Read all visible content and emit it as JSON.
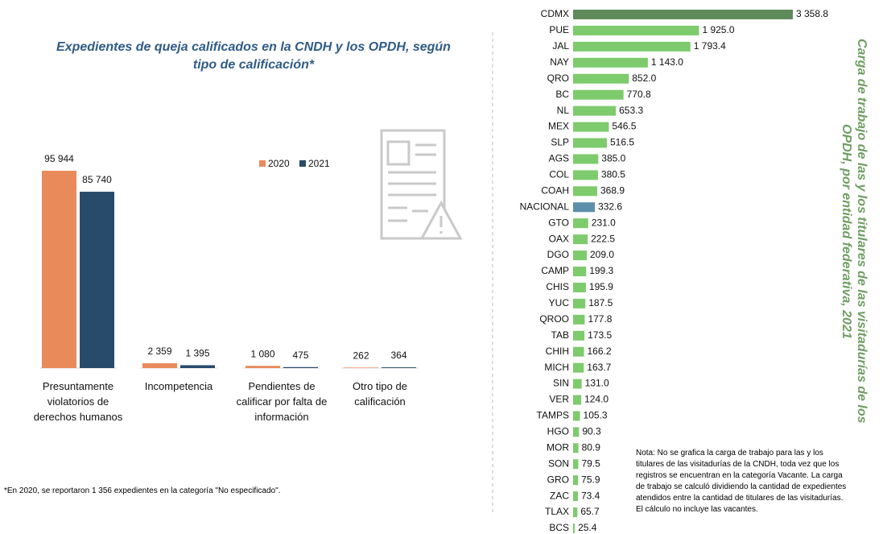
{
  "chart_data": [
    {
      "type": "grouped_bar",
      "title": "Expedientes de queja calificados en la CNDH y los OPDH, según tipo de calificación*",
      "categories": [
        "Presuntamente violatorios de derechos humanos",
        "Incompetencia",
        "Pendientes de calificar por falta de información",
        "Otro tipo de calificación"
      ],
      "series": [
        {
          "name": "2020",
          "color": "#e98a5a",
          "values": [
            95944,
            2359,
            1080,
            262
          ],
          "value_labels": [
            "95 944",
            "2 359",
            "1 080",
            "262"
          ]
        },
        {
          "name": "2021",
          "color": "#284a6b",
          "values": [
            85740,
            1395,
            475,
            364
          ],
          "value_labels": [
            "85 740",
            "1 395",
            "475",
            "364"
          ]
        }
      ],
      "legend": "top-right",
      "footnote": "*En 2020, se reportaron 1 356 expedientes en la categoría \"No especificado\"."
    },
    {
      "type": "hbar",
      "title": "Carga de trabajo de las y los titulares de las visitadurías de los OPDH, por entidad federativa, 2021",
      "categories": [
        "CDMX",
        "PUE",
        "JAL",
        "NAY",
        "QRO",
        "BC",
        "NL",
        "MEX",
        "SLP",
        "AGS",
        "COL",
        "COAH",
        "NACIONAL",
        "GTO",
        "OAX",
        "DGO",
        "CAMP",
        "CHIS",
        "YUC",
        "QROO",
        "TAB",
        "CHIH",
        "MICH",
        "SIN",
        "VER",
        "TAMPS",
        "HGO",
        "MOR",
        "SON",
        "GRO",
        "ZAC",
        "TLAX",
        "BCS"
      ],
      "values": [
        3358.8,
        1925.0,
        1793.4,
        1143.0,
        852.0,
        770.8,
        653.3,
        546.5,
        516.5,
        385.0,
        380.5,
        368.9,
        332.6,
        231.0,
        222.5,
        209.0,
        199.3,
        195.9,
        187.5,
        177.8,
        173.5,
        166.2,
        163.7,
        131.0,
        124.0,
        105.3,
        90.3,
        80.9,
        79.5,
        75.9,
        73.4,
        65.7,
        25.4
      ],
      "value_labels": [
        "3 358.8",
        "1 925.0",
        "1 793.4",
        "1 143.0",
        "852.0",
        "770.8",
        "653.3",
        "546.5",
        "516.5",
        "385.0",
        "380.5",
        "368.9",
        "332.6",
        "231.0",
        "222.5",
        "209.0",
        "199.3",
        "195.9",
        "187.5",
        "177.8",
        "173.5",
        "166.2",
        "163.7",
        "131.0",
        "124.0",
        "105.3",
        "90.3",
        "80.9",
        "79.5",
        "75.9",
        "73.4",
        "65.7",
        "25.4"
      ],
      "colors": [
        "#5e8a5c",
        "#7dcb6c",
        "#7dcb6c",
        "#7dcb6c",
        "#7dcb6c",
        "#7dcb6c",
        "#7dcb6c",
        "#7dcb6c",
        "#7dcb6c",
        "#7dcb6c",
        "#7dcb6c",
        "#7dcb6c",
        "#5b8fab",
        "#7dcb6c",
        "#7dcb6c",
        "#7dcb6c",
        "#7dcb6c",
        "#7dcb6c",
        "#7dcb6c",
        "#7dcb6c",
        "#7dcb6c",
        "#7dcb6c",
        "#7dcb6c",
        "#7dcb6c",
        "#7dcb6c",
        "#7dcb6c",
        "#7dcb6c",
        "#7dcb6c",
        "#7dcb6c",
        "#7dcb6c",
        "#7dcb6c",
        "#7dcb6c",
        "#7dcb6c"
      ],
      "note": "Nota: No se grafica la carga de trabajo para las y los titulares de las visitadurías de la CNDH, toda vez que los registros se encuentran en la categoría Vacante. La carga de trabajo se calculó dividiendo la cantidad de expedientes atendidos entre la cantidad de titulares de las visitadurías. El cálculo no incluye las vacantes."
    }
  ]
}
